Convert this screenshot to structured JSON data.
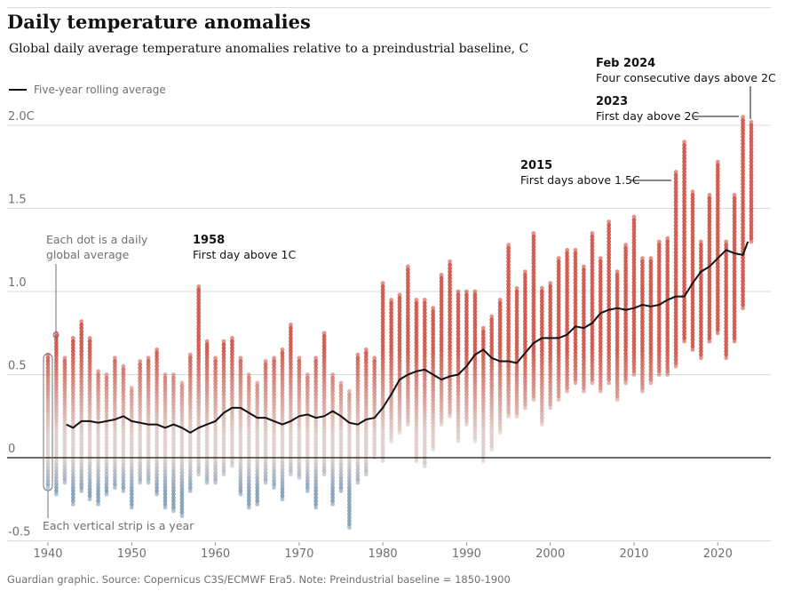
{
  "title": "Daily temperature anomalies",
  "subtitle": "Global daily average temperature anomalies relative to a preindustrial baseline, C",
  "legend": {
    "rolling_label": "Five-year rolling average",
    "line_color": "#121212"
  },
  "source": "Guardian graphic. Source: Copernicus C3S/ECMWF Era5. Note: Preindustrial baseline = 1850-1900",
  "colors": {
    "warm": "#c8382a",
    "neutral": "#d9c7c0",
    "cool": "#6f8fb0",
    "zero_line": "#121212",
    "grid": "#dcdcdc"
  },
  "chart_data": {
    "type": "scatter",
    "title": "Daily temperature anomalies",
    "subtitle": "Global daily average temperature anomalies relative to a preindustrial baseline, C",
    "xlabel": "",
    "ylabel": "",
    "xlim": [
      1940,
      2024
    ],
    "ylim": [
      -0.5,
      2.0
    ],
    "grid": true,
    "y_ticks": [
      {
        "value": -0.5,
        "label": "-0.5"
      },
      {
        "value": 0,
        "label": "0"
      },
      {
        "value": 0.5,
        "label": "0.5"
      },
      {
        "value": 1.0,
        "label": "1.0"
      },
      {
        "value": 1.5,
        "label": "1.5"
      },
      {
        "value": 2.0,
        "label": "2.0C"
      }
    ],
    "x_ticks": [
      {
        "value": 1940,
        "label": "1940"
      },
      {
        "value": 1950,
        "label": "1950"
      },
      {
        "value": 1960,
        "label": "1960"
      },
      {
        "value": 1970,
        "label": "1970"
      },
      {
        "value": 1980,
        "label": "1980"
      },
      {
        "value": 1990,
        "label": "1990"
      },
      {
        "value": 2000,
        "label": "2000"
      },
      {
        "value": 2010,
        "label": "2010"
      },
      {
        "value": 2020,
        "label": "2020"
      }
    ],
    "years": [
      1940,
      1941,
      1942,
      1943,
      1944,
      1945,
      1946,
      1947,
      1948,
      1949,
      1950,
      1951,
      1952,
      1953,
      1954,
      1955,
      1956,
      1957,
      1958,
      1959,
      1960,
      1961,
      1962,
      1963,
      1964,
      1965,
      1966,
      1967,
      1968,
      1969,
      1970,
      1971,
      1972,
      1973,
      1974,
      1975,
      1976,
      1977,
      1978,
      1979,
      1980,
      1981,
      1982,
      1983,
      1984,
      1985,
      1986,
      1987,
      1988,
      1989,
      1990,
      1991,
      1992,
      1993,
      1994,
      1995,
      1996,
      1997,
      1998,
      1999,
      2000,
      2001,
      2002,
      2003,
      2004,
      2005,
      2006,
      2007,
      2008,
      2009,
      2010,
      2011,
      2012,
      2013,
      2014,
      2015,
      2016,
      2017,
      2018,
      2019,
      2020,
      2021,
      2022,
      2023,
      2024
    ],
    "daily_max": [
      0.62,
      0.75,
      0.6,
      0.72,
      0.82,
      0.72,
      0.52,
      0.5,
      0.6,
      0.55,
      0.42,
      0.58,
      0.6,
      0.65,
      0.5,
      0.5,
      0.45,
      0.62,
      1.03,
      0.7,
      0.6,
      0.7,
      0.72,
      0.6,
      0.5,
      0.45,
      0.58,
      0.6,
      0.65,
      0.8,
      0.6,
      0.5,
      0.6,
      0.75,
      0.5,
      0.45,
      0.4,
      0.62,
      0.65,
      0.6,
      1.05,
      0.95,
      0.98,
      1.15,
      0.95,
      0.95,
      0.9,
      1.1,
      1.18,
      1.0,
      1.0,
      1.0,
      0.78,
      0.85,
      0.95,
      1.28,
      1.02,
      1.12,
      1.35,
      1.02,
      1.05,
      1.2,
      1.25,
      1.25,
      1.15,
      1.35,
      1.2,
      1.42,
      1.12,
      1.28,
      1.45,
      1.2,
      1.2,
      1.3,
      1.32,
      1.72,
      1.9,
      1.6,
      1.3,
      1.58,
      1.78,
      1.3,
      1.58,
      2.05,
      2.02
    ],
    "daily_min": [
      -0.18,
      -0.22,
      -0.15,
      -0.28,
      -0.2,
      -0.25,
      -0.28,
      -0.22,
      -0.18,
      -0.2,
      -0.3,
      -0.15,
      -0.15,
      -0.22,
      -0.3,
      -0.32,
      -0.35,
      -0.2,
      -0.1,
      -0.15,
      -0.15,
      -0.1,
      -0.05,
      -0.22,
      -0.3,
      -0.28,
      -0.15,
      -0.18,
      -0.25,
      -0.1,
      -0.12,
      -0.2,
      -0.3,
      -0.1,
      -0.28,
      -0.2,
      -0.42,
      -0.15,
      -0.1,
      0.0,
      -0.02,
      0.1,
      0.15,
      0.2,
      -0.02,
      -0.05,
      0.05,
      0.2,
      0.25,
      0.1,
      0.2,
      0.1,
      -0.02,
      0.05,
      0.15,
      0.25,
      0.25,
      0.3,
      0.35,
      0.2,
      0.3,
      0.35,
      0.4,
      0.45,
      0.4,
      0.45,
      0.4,
      0.45,
      0.35,
      0.45,
      0.5,
      0.4,
      0.45,
      0.5,
      0.5,
      0.55,
      0.7,
      0.65,
      0.6,
      0.7,
      0.75,
      0.6,
      0.7,
      0.9,
      1.3
    ],
    "rolling_average": {
      "name": "Five-year rolling average",
      "x": [
        1942.2,
        1943,
        1944,
        1945,
        1946,
        1947,
        1948,
        1949,
        1950,
        1951,
        1952,
        1953,
        1954,
        1955,
        1956,
        1957,
        1958,
        1959,
        1960,
        1961,
        1962,
        1963,
        1964,
        1965,
        1966,
        1967,
        1968,
        1969,
        1970,
        1971,
        1972,
        1973,
        1974,
        1975,
        1976,
        1977,
        1978,
        1979,
        1980,
        1981,
        1982,
        1983,
        1984,
        1985,
        1986,
        1987,
        1988,
        1989,
        1990,
        1991,
        1992,
        1993,
        1994,
        1995,
        1996,
        1997,
        1998,
        1999,
        2000,
        2001,
        2002,
        2003,
        2004,
        2005,
        2006,
        2007,
        2008,
        2009,
        2010,
        2011,
        2012,
        2013,
        2014,
        2015,
        2016,
        2017,
        2018,
        2019,
        2020,
        2021,
        2022,
        2023,
        2023.6
      ],
      "y": [
        0.2,
        0.18,
        0.22,
        0.22,
        0.21,
        0.22,
        0.23,
        0.25,
        0.22,
        0.21,
        0.2,
        0.2,
        0.18,
        0.2,
        0.18,
        0.15,
        0.18,
        0.2,
        0.22,
        0.27,
        0.3,
        0.3,
        0.27,
        0.24,
        0.24,
        0.22,
        0.2,
        0.22,
        0.25,
        0.26,
        0.24,
        0.25,
        0.28,
        0.25,
        0.21,
        0.2,
        0.23,
        0.24,
        0.3,
        0.38,
        0.47,
        0.5,
        0.52,
        0.53,
        0.5,
        0.47,
        0.49,
        0.5,
        0.55,
        0.62,
        0.65,
        0.6,
        0.58,
        0.58,
        0.57,
        0.63,
        0.69,
        0.72,
        0.72,
        0.72,
        0.74,
        0.79,
        0.78,
        0.81,
        0.87,
        0.89,
        0.9,
        0.89,
        0.9,
        0.92,
        0.91,
        0.92,
        0.95,
        0.97,
        0.97,
        1.05,
        1.12,
        1.15,
        1.2,
        1.25,
        1.23,
        1.22,
        1.3
      ]
    },
    "annotations": [
      {
        "year_label": "1958",
        "text": "First day above 1C"
      },
      {
        "year_label": "2015",
        "text": "First days above 1.5C"
      },
      {
        "year_label": "2023",
        "text": "First day above 2C"
      },
      {
        "year_label": "Feb 2024",
        "text": "Four consecutive days above 2C"
      }
    ],
    "explainers": {
      "dot": [
        "Each dot is a daily",
        "global average"
      ],
      "strip": "Each vertical strip is a year"
    }
  }
}
